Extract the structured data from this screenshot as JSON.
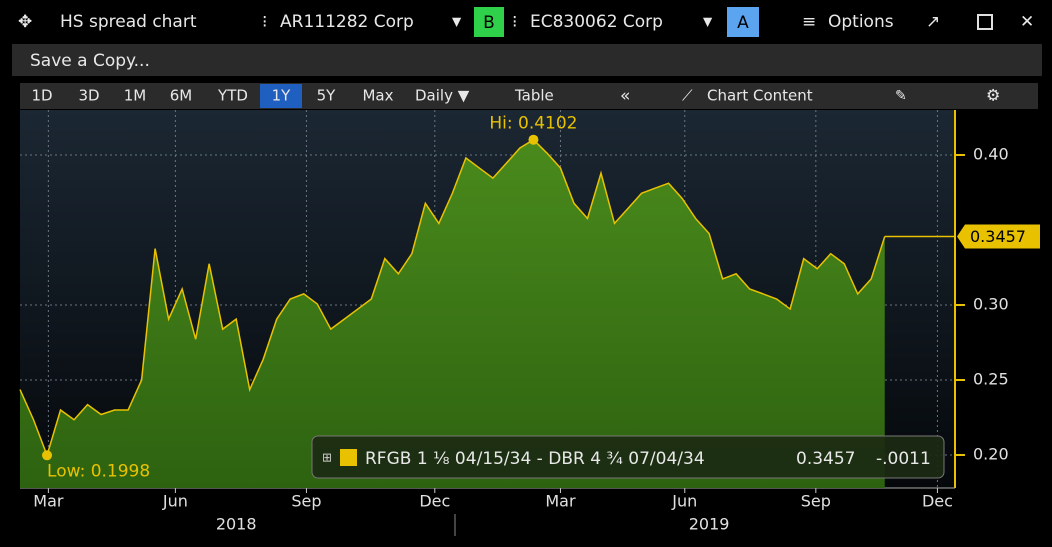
{
  "window": {
    "title": "HS spread chart",
    "security1": "AR111282 Corp",
    "badge1": "B",
    "security2": "EC830062 Corp",
    "badge2": "A",
    "options": "Options"
  },
  "toolbar": {
    "save": "Save a Copy...",
    "ranges": [
      "1D",
      "3D",
      "1M",
      "6M",
      "YTD",
      "1Y",
      "5Y",
      "Max"
    ],
    "selected_range": 5,
    "frequency": "Daily ▼",
    "table": "Table",
    "collapse": "«",
    "chart_content": "Chart Content"
  },
  "chart_data": {
    "type": "area",
    "series": [
      {
        "name": "RFGB 1 ⅛ 04/15/34 - DBR 4 ¾ 07/04/34",
        "color": "#e8c200",
        "fill": "#3f7d17",
        "values": [
          0.2436,
          0.2235,
          0.1998,
          0.23,
          0.2235,
          0.2336,
          0.227,
          0.23,
          0.23,
          0.25,
          0.3376,
          0.2906,
          0.3107,
          0.2772,
          0.3275,
          0.2839,
          0.2906,
          0.2436,
          0.2638,
          0.2906,
          0.304,
          0.3074,
          0.3007,
          0.2839,
          0.2906,
          0.2973,
          0.304,
          0.3309,
          0.3208,
          0.3342,
          0.3678,
          0.3544,
          0.3745,
          0.398,
          0.3913,
          0.3846,
          0.3946,
          0.4047,
          0.4102,
          0.4013,
          0.3913,
          0.3678,
          0.3577,
          0.3879,
          0.3544,
          0.3644,
          0.3745,
          0.3779,
          0.3812,
          0.3711,
          0.3577,
          0.3477,
          0.3174,
          0.3208,
          0.3107,
          0.3074,
          0.304,
          0.2973,
          0.3309,
          0.3242,
          0.3342,
          0.3275,
          0.3074,
          0.3174,
          0.3457
        ]
      }
    ],
    "last_value": 0.3457,
    "change": {
      "value": -0.0011,
      "label": "-.0011"
    },
    "annotations": {
      "high": "Hi: 0.4102",
      "low": "Low: 0.1998"
    },
    "xlim": [
      0,
      69.2
    ],
    "xticks": [
      {
        "value": 2.1,
        "label": "Mar"
      },
      {
        "value": 11.5,
        "label": "Jun"
      },
      {
        "value": 21.2,
        "label": "Sep"
      },
      {
        "value": 30.7,
        "label": "Dec"
      },
      {
        "value": 40,
        "label": "Mar"
      },
      {
        "value": 49.2,
        "label": "Jun"
      },
      {
        "value": 58.9,
        "label": "Sep"
      },
      {
        "value": 67.9,
        "label": "Dec"
      }
    ],
    "xgroups": [
      {
        "value": 16,
        "label": "2018"
      },
      {
        "value": 51,
        "label": "2019"
      }
    ],
    "ylim": [
      0.178,
      0.43
    ],
    "yticks": [
      {
        "value": 0.2,
        "label": "0.20"
      },
      {
        "value": 0.25,
        "label": "0.25"
      },
      {
        "value": 0.3,
        "label": "0.30"
      },
      {
        "value": 0.4,
        "label": "0.40"
      }
    ],
    "grid": true
  }
}
